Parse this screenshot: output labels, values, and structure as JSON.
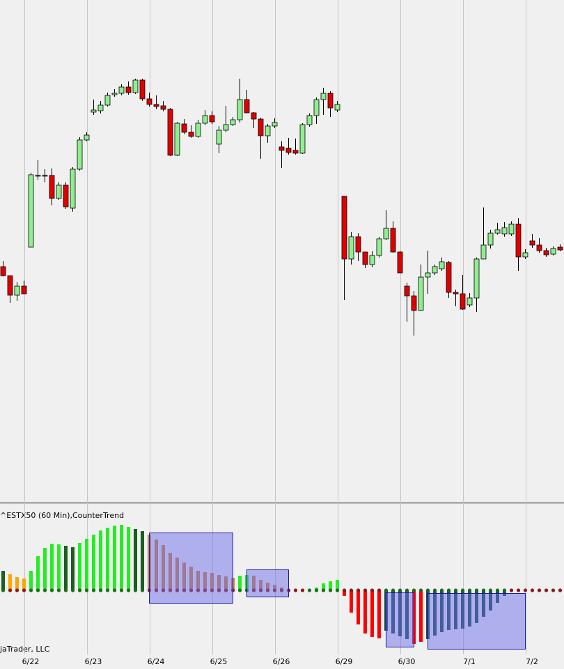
{
  "chart_data": [
    {
      "type": "candlestick",
      "categories": [
        null,
        null,
        null,
        null,
        "6/22",
        null,
        null,
        null,
        null,
        null,
        null,
        null,
        null,
        "6/23",
        null,
        null,
        null,
        null,
        null,
        null,
        null,
        null,
        "6/24",
        null,
        null,
        null,
        null,
        null,
        null,
        null,
        null,
        "6/25",
        null,
        null,
        null,
        null,
        null,
        null,
        null,
        null,
        "6/26",
        null,
        null,
        null,
        null,
        null,
        null,
        null,
        null,
        "6/29",
        null,
        null,
        null,
        null,
        null,
        null,
        null,
        null,
        "6/30",
        null,
        null,
        null,
        null,
        null,
        null,
        null,
        null,
        "7/1",
        null,
        null,
        null,
        null,
        null,
        null,
        null,
        null,
        "7/2",
        null,
        null,
        null,
        null
      ],
      "open": [
        337,
        324,
        296,
        309,
        365,
        468,
        468,
        468,
        435,
        454,
        421,
        477,
        519,
        559,
        561,
        569,
        584,
        586,
        595,
        587,
        605,
        578,
        570,
        568,
        563,
        497,
        542,
        530,
        524,
        543,
        554,
        513,
        533,
        541,
        548,
        577,
        558,
        549,
        525,
        539,
        509,
        507,
        504,
        500,
        541,
        554,
        577,
        586,
        562,
        438,
        348,
        380,
        358,
        340,
        353,
        377,
        392,
        358,
        309,
        295,
        274,
        322,
        328,
        334,
        343,
        300,
        298,
        282,
        292,
        348,
        368,
        385,
        384,
        384,
        398,
        351,
        374,
        368,
        360,
        355,
        365
      ],
      "high": [
        345,
        324,
        315,
        317,
        472,
        490,
        477,
        478,
        458,
        458,
        480,
        523,
        530,
        577,
        575,
        587,
        592,
        599,
        603,
        607,
        607,
        587,
        583,
        575,
        565,
        545,
        549,
        540,
        548,
        562,
        560,
        539,
        568,
        552,
        607,
        591,
        559,
        551,
        542,
        550,
        517,
        522,
        521,
        543,
        557,
        580,
        594,
        589,
        575,
        438,
        387,
        385,
        358,
        359,
        380,
        418,
        402,
        359,
        314,
        302,
        340,
        360,
        340,
        350,
        345,
        304,
        325,
        299,
        350,
        422,
        390,
        400,
        401,
        402,
        407,
        362,
        384,
        378,
        364,
        366,
        369
      ],
      "low": [
        323,
        285,
        288,
        298,
        365,
        462,
        458,
        425,
        433,
        420,
        416,
        475,
        517,
        555,
        557,
        567,
        581,
        583,
        584,
        585,
        575,
        567,
        563,
        560,
        496,
        496,
        527,
        522,
        522,
        540,
        542,
        500,
        530,
        539,
        544,
        557,
        536,
        492,
        515,
        536,
        479,
        498,
        498,
        499,
        538,
        542,
        555,
        552,
        559,
        289,
        340,
        345,
        335,
        336,
        350,
        375,
        357,
        328,
        258,
        238,
        273,
        298,
        325,
        331,
        292,
        280,
        275,
        279,
        272,
        348,
        363,
        383,
        380,
        381,
        331,
        348,
        364,
        357,
        351,
        353,
        359
      ],
      "close": [
        324,
        296,
        309,
        298,
        469,
        467,
        467,
        435,
        454,
        423,
        477,
        519,
        526,
        562,
        569,
        583,
        586,
        595,
        587,
        605,
        578,
        570,
        567,
        563,
        497,
        543,
        530,
        524,
        543,
        554,
        545,
        533,
        541,
        548,
        577,
        558,
        549,
        525,
        539,
        544,
        504,
        501,
        500,
        541,
        554,
        577,
        586,
        565,
        570,
        348,
        380,
        358,
        340,
        353,
        377,
        392,
        358,
        328,
        295,
        274,
        322,
        328,
        337,
        344,
        300,
        298,
        276,
        292,
        348,
        368,
        385,
        390,
        393,
        398,
        351,
        357,
        368,
        360,
        354,
        363,
        361
      ],
      "up_color": "#90ee90",
      "down_color": "#e00000",
      "ylim": [
        0,
        720
      ]
    },
    {
      "type": "bar",
      "title": "^ESTX50 (60 Min),CounterTrend",
      "footer_text": "jaTrader, LLC",
      "values": [
        28,
        23,
        19,
        17,
        28,
        49,
        61,
        67,
        66,
        64,
        62,
        68,
        74,
        80,
        86,
        90,
        93,
        94,
        91,
        88,
        85,
        80,
        73,
        65,
        54,
        47,
        40,
        34,
        28,
        26,
        25,
        22,
        20,
        18,
        21,
        22,
        21,
        15,
        11,
        8,
        4,
        0,
        0,
        0,
        0,
        4,
        10,
        13,
        15,
        -8,
        -32,
        -49,
        -62,
        -67,
        -69,
        -58,
        -62,
        -66,
        -70,
        -77,
        -74,
        -70,
        -65,
        -60,
        -57,
        -56,
        -55,
        -52,
        -47,
        -38,
        -29,
        -18,
        -8,
        0,
        0,
        0,
        0,
        0,
        0,
        0,
        0
      ],
      "colors": [
        "#1b5e20",
        "#ffa500",
        "#ffa500",
        "#ffa500",
        "#22ee22",
        "#22ee22",
        "#22ee22",
        "#22ee22",
        "#22ee22",
        "#1b5e20",
        "#1b5e20",
        "#22ee22",
        "#22ee22",
        "#22ee22",
        "#22ee22",
        "#22ee22",
        "#22ee22",
        "#22ee22",
        "#22ee22",
        "#1b5e20",
        "#1b5e20",
        "#cd853f",
        "#cd853f",
        "#cd853f",
        "#cd853f",
        "#cd853f",
        "#cd853f",
        "#cd853f",
        "#cd853f",
        "#cd853f",
        "#cd853f",
        "#cd853f",
        "#cd853f",
        "#cd853f",
        "#22ee22",
        "#22ee22",
        "#cd853f",
        "#cd853f",
        "#cd853f",
        "#cd853f",
        "#cd853f",
        "#8b0000",
        "#8b0000",
        "#8b0000",
        "#8b0000",
        "#22ee22",
        "#22ee22",
        "#22ee22",
        "#22ee22",
        "#ff0000",
        "#ff0000",
        "#ff0000",
        "#ff0000",
        "#ff0000",
        "#ff0000",
        "#1a4d4d",
        "#1a4d4d",
        "#1a4d4d",
        "#1a4d4d",
        "#ff0000",
        "#ff0000",
        "#1a4d4d",
        "#1a4d4d",
        "#1a4d4d",
        "#1a4d4d",
        "#1a4d4d",
        "#1a4d4d",
        "#1a4d4d",
        "#1a4d4d",
        "#1a4d4d",
        "#1a4d4d",
        "#1a4d4d",
        "#1a4d4d",
        "#8b0000",
        "#8b0000",
        "#8b0000",
        "#8b0000",
        "#8b0000",
        "#8b0000",
        "#8b0000",
        "#8b0000"
      ],
      "dot_colors": [
        "#1a6e1a",
        "#8b1a1a",
        "#8b1a1a",
        "#8b1a1a",
        "#1a6e1a",
        "#1a6e1a",
        "#1a6e1a",
        "#1a6e1a",
        "#1a6e1a",
        "#1a6e1a",
        "#1a6e1a",
        "#1a6e1a",
        "#1a6e1a",
        "#1a6e1a",
        "#1a6e1a",
        "#1a6e1a",
        "#1a6e1a",
        "#1a6e1a",
        "#1a6e1a",
        "#1a6e1a",
        "#1a6e1a",
        "#8b1a1a",
        "#8b1a1a",
        "#8b1a1a",
        "#8b1a1a",
        "#8b1a1a",
        "#8b1a1a",
        "#8b1a1a",
        "#8b1a1a",
        "#8b1a1a",
        "#8b1a1a",
        "#8b1a1a",
        "#8b1a1a",
        "#8b1a1a",
        "#1a6e1a",
        "#1a6e1a",
        "#8b1a1a",
        "#8b1a1a",
        "#8b1a1a",
        "#8b1a1a",
        "#8b1a1a",
        "#8b1a1a",
        "#8b1a1a",
        "#8b1a1a",
        "#1a6e1a",
        "#1a6e1a",
        "#1a6e1a",
        "#1a6e1a",
        "#1a6e1a",
        "#8b1a1a",
        "#8b1a1a",
        "#8b1a1a",
        "#8b1a1a",
        "#8b1a1a",
        "#8b1a1a",
        "#1a6e1a",
        "#1a6e1a",
        "#1a6e1a",
        "#1a6e1a",
        "#1a6e1a",
        "#1a6e1a",
        "#1a6e1a",
        "#1a6e1a",
        "#1a6e1a",
        "#1a6e1a",
        "#1a6e1a",
        "#1a6e1a",
        "#1a6e1a",
        "#1a6e1a",
        "#1a6e1a",
        "#1a6e1a",
        "#1a6e1a",
        "#1a6e1a",
        "#8b1a1a",
        "#8b1a1a",
        "#8b1a1a",
        "#8b1a1a",
        "#8b1a1a",
        "#8b1a1a",
        "#8b1a1a",
        "#8b1a1a"
      ],
      "ylim": [
        -90,
        125
      ]
    }
  ]
}
